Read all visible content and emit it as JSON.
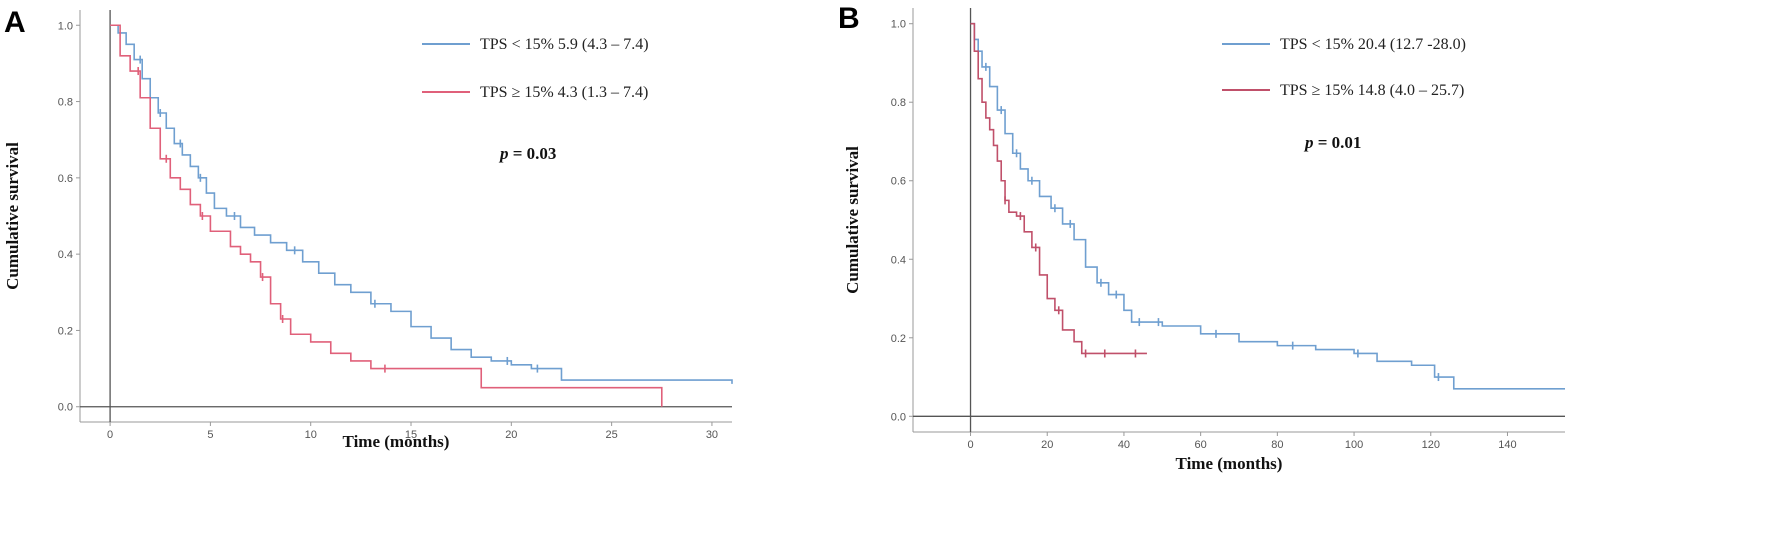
{
  "chart_data": [
    {
      "type": "line",
      "panel_label": "A",
      "xlabel": "Time (months)",
      "ylabel": "Cumulative survival",
      "xlim": [
        -1.5,
        31
      ],
      "ylim": [
        -0.04,
        1.04
      ],
      "xticks": [
        0,
        5,
        10,
        15,
        20,
        25,
        30
      ],
      "yticks": [
        0.0,
        0.2,
        0.4,
        0.6,
        0.8,
        1.0
      ],
      "xtick_labels": [
        "0",
        "5",
        "10",
        "15",
        "20",
        "25",
        "30"
      ],
      "ytick_labels": [
        "0.0",
        "0.2",
        "0.4",
        "0.6",
        "0.8",
        "1.0"
      ],
      "grid": false,
      "legend_position": "top-right",
      "annotation_prefix": "p",
      "annotation_value": "= 0.03",
      "series": [
        {
          "name": "TPS < 15% 5.9 (4.3 – 7.4)",
          "color": "#6f9fd0",
          "x": [
            0,
            0.4,
            0.8,
            1.2,
            1.6,
            2.0,
            2.4,
            2.8,
            3.2,
            3.6,
            4.0,
            4.4,
            4.8,
            5.2,
            5.8,
            6.5,
            7.2,
            8.0,
            8.8,
            9.6,
            10.4,
            11.2,
            12.0,
            13.0,
            14.0,
            15.0,
            16.0,
            17.0,
            18.0,
            19.0,
            20.0,
            21.0,
            22.5,
            31
          ],
          "y": [
            1.0,
            0.98,
            0.95,
            0.91,
            0.86,
            0.81,
            0.77,
            0.73,
            0.69,
            0.66,
            0.63,
            0.6,
            0.56,
            0.52,
            0.5,
            0.47,
            0.45,
            0.43,
            0.41,
            0.38,
            0.35,
            0.32,
            0.3,
            0.27,
            0.25,
            0.21,
            0.18,
            0.15,
            0.13,
            0.12,
            0.11,
            0.1,
            0.07,
            0.06
          ],
          "censor_x": [
            1.5,
            2.5,
            3.5,
            4.5,
            6.2,
            9.2,
            13.2,
            19.8,
            21.3
          ]
        },
        {
          "name": "TPS ≥ 15% 4.3 (1.3 – 7.4)",
          "color": "#e0607a",
          "x": [
            0,
            0.5,
            1.0,
            1.5,
            2.0,
            2.5,
            3.0,
            3.5,
            4.0,
            4.5,
            5.0,
            6.0,
            6.5,
            7.0,
            7.5,
            8.0,
            8.5,
            9.0,
            10.0,
            11.0,
            12.0,
            13.0,
            18.5,
            27.5
          ],
          "y": [
            1.0,
            0.92,
            0.88,
            0.81,
            0.73,
            0.65,
            0.6,
            0.57,
            0.53,
            0.5,
            0.46,
            0.42,
            0.4,
            0.38,
            0.34,
            0.27,
            0.23,
            0.19,
            0.17,
            0.14,
            0.12,
            0.1,
            0.05,
            0.0
          ],
          "censor_x": [
            1.4,
            2.8,
            4.6,
            7.6,
            8.6,
            13.7
          ]
        }
      ]
    },
    {
      "type": "line",
      "panel_label": "B",
      "xlabel": "Time (months)",
      "ylabel": "Cumulative survival",
      "xlim": [
        -15,
        155
      ],
      "ylim": [
        -0.04,
        1.04
      ],
      "xticks": [
        0,
        20,
        40,
        60,
        80,
        100,
        120,
        140
      ],
      "yticks": [
        0.0,
        0.2,
        0.4,
        0.6,
        0.8,
        1.0
      ],
      "xtick_labels": [
        "0",
        "20",
        "40",
        "60",
        "80",
        "100",
        "120",
        "140"
      ],
      "ytick_labels": [
        "0.0",
        "0.2",
        "0.4",
        "0.6",
        "0.8",
        "1.0"
      ],
      "grid": false,
      "legend_position": "top-right",
      "annotation_prefix": "p",
      "annotation_value": "= 0.01",
      "series": [
        {
          "name": "TPS < 15% 20.4 (12.7 -28.0)",
          "color": "#6f9fd0",
          "x": [
            0,
            1,
            2,
            3,
            5,
            7,
            9,
            11,
            13,
            15,
            18,
            21,
            24,
            27,
            30,
            33,
            36,
            40,
            42,
            50,
            60,
            70,
            80,
            90,
            100,
            106,
            115,
            121,
            126,
            155
          ],
          "y": [
            1.0,
            0.96,
            0.93,
            0.89,
            0.84,
            0.78,
            0.72,
            0.67,
            0.63,
            0.6,
            0.56,
            0.53,
            0.49,
            0.45,
            0.38,
            0.34,
            0.31,
            0.27,
            0.24,
            0.23,
            0.21,
            0.19,
            0.18,
            0.17,
            0.16,
            0.14,
            0.13,
            0.1,
            0.07,
            0.07
          ],
          "censor_x": [
            4,
            8,
            12,
            16,
            22,
            26,
            34,
            38,
            44,
            49,
            64,
            84,
            101,
            122
          ]
        },
        {
          "name": "TPS ≥ 15% 14.8 (4.0 – 25.7)",
          "color": "#c0506a",
          "x": [
            0,
            1,
            2,
            3,
            4,
            5,
            6,
            7,
            8,
            9,
            10,
            12,
            14,
            16,
            18,
            20,
            22,
            24,
            27,
            29,
            46
          ],
          "y": [
            1.0,
            0.93,
            0.86,
            0.8,
            0.76,
            0.73,
            0.69,
            0.65,
            0.6,
            0.55,
            0.52,
            0.51,
            0.47,
            0.43,
            0.36,
            0.3,
            0.27,
            0.22,
            0.19,
            0.16,
            0.16
          ],
          "censor_x": [
            9,
            13,
            17,
            23,
            30,
            35,
            43
          ]
        }
      ]
    }
  ]
}
